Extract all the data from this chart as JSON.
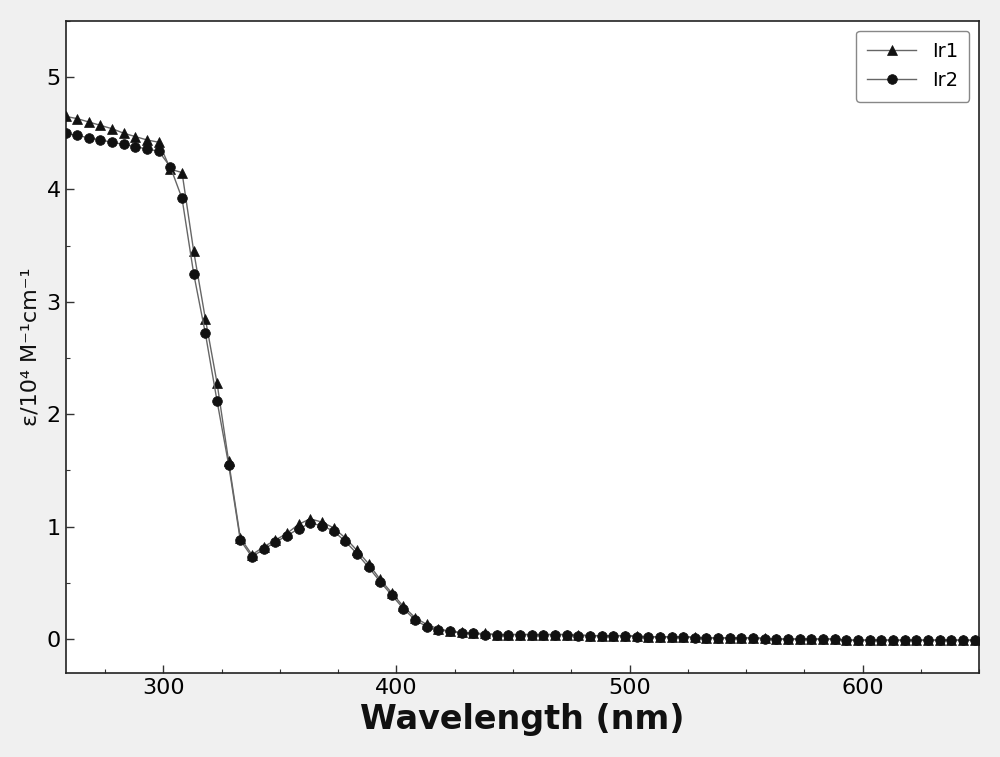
{
  "title": "",
  "xlabel": "Wavelength (nm)",
  "ylabel": "ε/10⁴ M⁻¹cm⁻¹",
  "xlim": [
    258,
    650
  ],
  "ylim": [
    -0.3,
    5.5
  ],
  "yticks": [
    0,
    1,
    2,
    3,
    4,
    5
  ],
  "xticks": [
    300,
    400,
    500,
    600
  ],
  "ir1_x": [
    258,
    263,
    268,
    273,
    278,
    283,
    288,
    293,
    298,
    303,
    308,
    313,
    318,
    323,
    328,
    333,
    338,
    343,
    348,
    353,
    358,
    363,
    368,
    373,
    378,
    383,
    388,
    393,
    398,
    403,
    408,
    413,
    418,
    423,
    428,
    433,
    438,
    443,
    448,
    453,
    458,
    463,
    468,
    473,
    478,
    483,
    488,
    493,
    498,
    503,
    508,
    513,
    518,
    523,
    528,
    533,
    538,
    543,
    548,
    553,
    558,
    563,
    568,
    573,
    578,
    583,
    588,
    593,
    598,
    603,
    608,
    613,
    618,
    623,
    628,
    633,
    638,
    643,
    648
  ],
  "ir1_y": [
    4.65,
    4.63,
    4.6,
    4.57,
    4.54,
    4.5,
    4.47,
    4.44,
    4.42,
    4.18,
    4.15,
    3.45,
    2.85,
    2.28,
    1.58,
    0.9,
    0.75,
    0.82,
    0.88,
    0.94,
    1.02,
    1.07,
    1.04,
    0.99,
    0.9,
    0.79,
    0.67,
    0.53,
    0.41,
    0.29,
    0.19,
    0.13,
    0.09,
    0.07,
    0.06,
    0.05,
    0.05,
    0.04,
    0.04,
    0.04,
    0.04,
    0.04,
    0.04,
    0.04,
    0.04,
    0.03,
    0.03,
    0.03,
    0.03,
    0.03,
    0.02,
    0.02,
    0.02,
    0.02,
    0.02,
    0.01,
    0.01,
    0.01,
    0.01,
    0.01,
    0.01,
    0.0,
    0.0,
    0.0,
    0.0,
    0.0,
    0.0,
    -0.01,
    -0.01,
    -0.01,
    -0.01,
    -0.01,
    -0.01,
    -0.01,
    -0.01,
    -0.01,
    -0.01,
    -0.01,
    -0.01
  ],
  "ir2_x": [
    258,
    263,
    268,
    273,
    278,
    283,
    288,
    293,
    298,
    303,
    308,
    313,
    318,
    323,
    328,
    333,
    338,
    343,
    348,
    353,
    358,
    363,
    368,
    373,
    378,
    383,
    388,
    393,
    398,
    403,
    408,
    413,
    418,
    423,
    428,
    433,
    438,
    443,
    448,
    453,
    458,
    463,
    468,
    473,
    478,
    483,
    488,
    493,
    498,
    503,
    508,
    513,
    518,
    523,
    528,
    533,
    538,
    543,
    548,
    553,
    558,
    563,
    568,
    573,
    578,
    583,
    588,
    593,
    598,
    603,
    608,
    613,
    618,
    623,
    628,
    633,
    638,
    643,
    648
  ],
  "ir2_y": [
    4.5,
    4.48,
    4.46,
    4.44,
    4.42,
    4.4,
    4.38,
    4.36,
    4.34,
    4.2,
    3.92,
    3.25,
    2.72,
    2.12,
    1.55,
    0.88,
    0.73,
    0.8,
    0.86,
    0.92,
    0.98,
    1.03,
    1.01,
    0.96,
    0.87,
    0.76,
    0.64,
    0.51,
    0.39,
    0.27,
    0.17,
    0.11,
    0.08,
    0.07,
    0.05,
    0.05,
    0.04,
    0.04,
    0.04,
    0.04,
    0.04,
    0.04,
    0.04,
    0.04,
    0.03,
    0.03,
    0.03,
    0.03,
    0.03,
    0.02,
    0.02,
    0.02,
    0.02,
    0.02,
    0.01,
    0.01,
    0.01,
    0.01,
    0.01,
    0.01,
    0.0,
    0.0,
    0.0,
    0.0,
    0.0,
    0.0,
    0.0,
    -0.01,
    -0.01,
    -0.01,
    -0.01,
    -0.01,
    -0.01,
    -0.01,
    -0.01,
    -0.01,
    -0.01,
    -0.01,
    -0.01
  ],
  "line_color": "#666666",
  "marker_color": "#111111",
  "bg_color": "#f0f0f0",
  "plot_bg_color": "#ffffff",
  "legend_labels": [
    "Ir1",
    "Ir2"
  ],
  "xlabel_fontsize": 24,
  "ylabel_fontsize": 16,
  "tick_fontsize": 16,
  "legend_fontsize": 14,
  "markersize_tri": 7,
  "markersize_circ": 7
}
